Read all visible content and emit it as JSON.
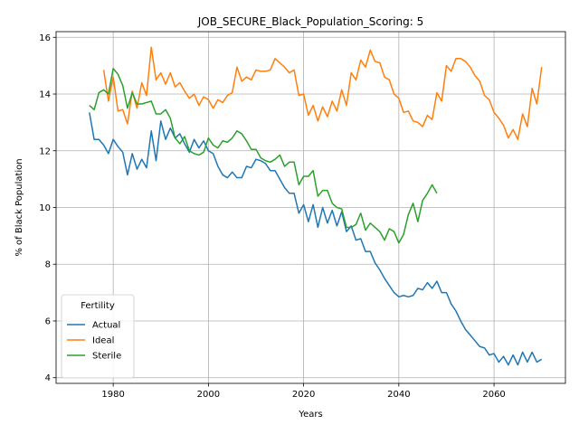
{
  "chart_data": {
    "type": "line",
    "title": "JOB_SECURE_Black_Population_Scoring: 5",
    "xlabel": "Years",
    "ylabel": "% of Black Population",
    "xlim": [
      1968,
      2075
    ],
    "ylim": [
      3.8,
      16.2
    ],
    "xticks": [
      1980,
      2000,
      2020,
      2040,
      2060
    ],
    "yticks": [
      4,
      6,
      8,
      10,
      12,
      14,
      16
    ],
    "grid": true,
    "legend": {
      "title": "Fertility",
      "position": "lower-left"
    },
    "series": [
      {
        "name": "Actual",
        "color": "#1f77b4",
        "x": [
          1975,
          1976,
          1977,
          1978,
          1979,
          1980,
          1981,
          1982,
          1983,
          1984,
          1985,
          1986,
          1987,
          1988,
          1989,
          1990,
          1991,
          1992,
          1993,
          1994,
          1995,
          1996,
          1997,
          1998,
          1999,
          2000,
          2001,
          2002,
          2003,
          2004,
          2005,
          2006,
          2007,
          2008,
          2009,
          2010,
          2011,
          2012,
          2013,
          2014,
          2015,
          2016,
          2017,
          2018,
          2019,
          2020,
          2021,
          2022,
          2023,
          2024,
          2025,
          2026,
          2027,
          2028,
          2029,
          2030,
          2031,
          2032,
          2033,
          2034,
          2035,
          2036,
          2037,
          2038,
          2039,
          2040,
          2041,
          2042,
          2043,
          2044,
          2045,
          2046,
          2047,
          2048,
          2049,
          2050,
          2051,
          2052,
          2053,
          2054,
          2055,
          2056,
          2057,
          2058,
          2059,
          2060,
          2061,
          2062,
          2063,
          2064,
          2065,
          2066,
          2067,
          2068,
          2069,
          2070
        ],
        "values": [
          13.35,
          12.4,
          12.4,
          12.2,
          11.9,
          12.4,
          12.15,
          11.95,
          11.15,
          11.9,
          11.35,
          11.7,
          11.4,
          12.7,
          11.65,
          13.05,
          12.4,
          12.8,
          12.45,
          12.6,
          12.25,
          11.95,
          12.4,
          12.1,
          12.35,
          12.0,
          11.9,
          11.45,
          11.15,
          11.05,
          11.25,
          11.05,
          11.05,
          11.45,
          11.4,
          11.7,
          11.65,
          11.55,
          11.3,
          11.3,
          11.0,
          10.7,
          10.5,
          10.5,
          9.8,
          10.1,
          9.5,
          10.1,
          9.3,
          10.0,
          9.45,
          9.9,
          9.35,
          9.85,
          9.15,
          9.35,
          8.85,
          8.9,
          8.45,
          8.45,
          8.05,
          7.8,
          7.5,
          7.25,
          7.0,
          6.85,
          6.9,
          6.85,
          6.9,
          7.15,
          7.1,
          7.35,
          7.15,
          7.4,
          7.0,
          7.0,
          6.6,
          6.35,
          6.0,
          5.7,
          5.5,
          5.3,
          5.1,
          5.05,
          4.8,
          4.85,
          4.55,
          4.75,
          4.45,
          4.8,
          4.45,
          4.9,
          4.55,
          4.9,
          4.55,
          4.65
        ]
      },
      {
        "name": "Ideal",
        "color": "#ff7f0e",
        "x": [
          1978,
          1979,
          1980,
          1981,
          1982,
          1983,
          1984,
          1985,
          1986,
          1987,
          1988,
          1989,
          1990,
          1991,
          1992,
          1993,
          1994,
          1995,
          1996,
          1997,
          1998,
          1999,
          2000,
          2001,
          2002,
          2003,
          2004,
          2005,
          2006,
          2007,
          2008,
          2009,
          2010,
          2011,
          2012,
          2013,
          2014,
          2015,
          2016,
          2017,
          2018,
          2019,
          2020,
          2021,
          2022,
          2023,
          2024,
          2025,
          2026,
          2027,
          2028,
          2029,
          2030,
          2031,
          2032,
          2033,
          2034,
          2035,
          2036,
          2037,
          2038,
          2039,
          2040,
          2041,
          2042,
          2043,
          2044,
          2045,
          2046,
          2047,
          2048,
          2049,
          2050,
          2051,
          2052,
          2053,
          2054,
          2055,
          2056,
          2057,
          2058,
          2059,
          2060,
          2061,
          2062,
          2063,
          2064,
          2065,
          2066,
          2067,
          2068,
          2069,
          2070
        ],
        "values": [
          14.85,
          13.75,
          14.6,
          13.4,
          13.45,
          12.95,
          14.1,
          13.5,
          14.4,
          13.95,
          15.65,
          14.5,
          14.75,
          14.35,
          14.75,
          14.25,
          14.4,
          14.1,
          13.85,
          14.0,
          13.6,
          13.9,
          13.8,
          13.5,
          13.8,
          13.7,
          13.95,
          14.05,
          14.95,
          14.45,
          14.6,
          14.5,
          14.85,
          14.8,
          14.8,
          14.85,
          15.25,
          15.1,
          14.95,
          14.75,
          14.85,
          13.95,
          14.0,
          13.25,
          13.6,
          13.05,
          13.55,
          13.2,
          13.75,
          13.4,
          14.15,
          13.6,
          14.75,
          14.5,
          15.2,
          14.95,
          15.55,
          15.15,
          15.1,
          14.6,
          14.5,
          14.0,
          13.85,
          13.35,
          13.4,
          13.05,
          13.0,
          12.85,
          13.25,
          13.1,
          14.05,
          13.75,
          15.0,
          14.8,
          15.25,
          15.25,
          15.15,
          14.95,
          14.65,
          14.45,
          13.95,
          13.8,
          13.35,
          13.15,
          12.9,
          12.45,
          12.75,
          12.4,
          13.3,
          12.85,
          14.2,
          13.65,
          14.95
        ]
      },
      {
        "name": "Sterile",
        "color": "#2ca02c",
        "x": [
          1975,
          1976,
          1977,
          1978,
          1979,
          1980,
          1981,
          1982,
          1983,
          1984,
          1985,
          1986,
          1987,
          1988,
          1989,
          1990,
          1991,
          1992,
          1993,
          1994,
          1995,
          1996,
          1997,
          1998,
          1999,
          2000,
          2001,
          2002,
          2003,
          2004,
          2005,
          2006,
          2007,
          2008,
          2009,
          2010,
          2011,
          2012,
          2013,
          2014,
          2015,
          2016,
          2017,
          2018,
          2019,
          2020,
          2021,
          2022,
          2023,
          2024,
          2025,
          2026,
          2027,
          2028,
          2029,
          2030,
          2031,
          2032,
          2033,
          2034,
          2035,
          2036,
          2037,
          2038,
          2039,
          2040,
          2041,
          2042,
          2043,
          2044,
          2045,
          2046,
          2047,
          2048
        ],
        "values": [
          13.6,
          13.45,
          14.05,
          14.15,
          14.0,
          14.9,
          14.7,
          14.3,
          13.5,
          14.05,
          13.65,
          13.65,
          13.7,
          13.75,
          13.3,
          13.3,
          13.45,
          13.15,
          12.45,
          12.25,
          12.5,
          12.0,
          11.9,
          11.85,
          11.95,
          12.45,
          12.2,
          12.1,
          12.35,
          12.3,
          12.45,
          12.7,
          12.6,
          12.35,
          12.05,
          12.05,
          11.75,
          11.65,
          11.6,
          11.7,
          11.85,
          11.45,
          11.6,
          11.6,
          10.8,
          11.1,
          11.1,
          11.3,
          10.4,
          10.6,
          10.6,
          10.15,
          10.0,
          9.95,
          9.3,
          9.3,
          9.4,
          9.8,
          9.2,
          9.45,
          9.3,
          9.15,
          8.85,
          9.25,
          9.15,
          8.75,
          9.05,
          9.75,
          10.15,
          9.5,
          10.25,
          10.5,
          10.8,
          10.5
        ]
      }
    ]
  }
}
